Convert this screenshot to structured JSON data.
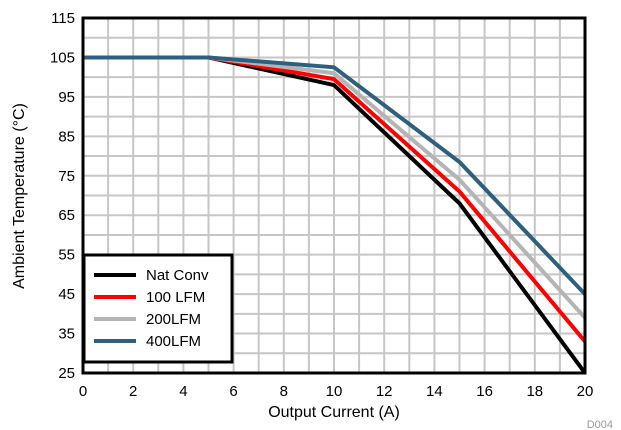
{
  "chart_data": {
    "type": "line",
    "title": "",
    "xlabel": "Output Current (A)",
    "ylabel": "Ambient Temperature (°C)",
    "xlim": [
      0,
      20
    ],
    "ylim": [
      25,
      115
    ],
    "xticks": [
      0,
      2,
      4,
      6,
      8,
      10,
      12,
      14,
      16,
      18,
      20
    ],
    "yticks": [
      25,
      35,
      45,
      55,
      65,
      75,
      85,
      95,
      105,
      115
    ],
    "grid": true,
    "legend_position": "bottom-left",
    "figure_id": "D004",
    "series": [
      {
        "name": "Nat Conv",
        "color": "#000000",
        "x": [
          0,
          5,
          10,
          15,
          20
        ],
        "y": [
          105,
          105,
          98,
          68,
          25
        ]
      },
      {
        "name": "100 LFM",
        "color": "#ff0000",
        "x": [
          0,
          5,
          10,
          15,
          20
        ],
        "y": [
          105,
          105,
          99.5,
          71,
          33
        ]
      },
      {
        "name": "200LFM",
        "color": "#b4b4b4",
        "x": [
          0,
          5,
          10,
          15,
          20
        ],
        "y": [
          105,
          105,
          101,
          74,
          39
        ]
      },
      {
        "name": "400LFM",
        "color": "#2e5f7e",
        "x": [
          0,
          5,
          10,
          15,
          20
        ],
        "y": [
          105,
          105,
          102.5,
          78.5,
          45
        ]
      }
    ]
  }
}
